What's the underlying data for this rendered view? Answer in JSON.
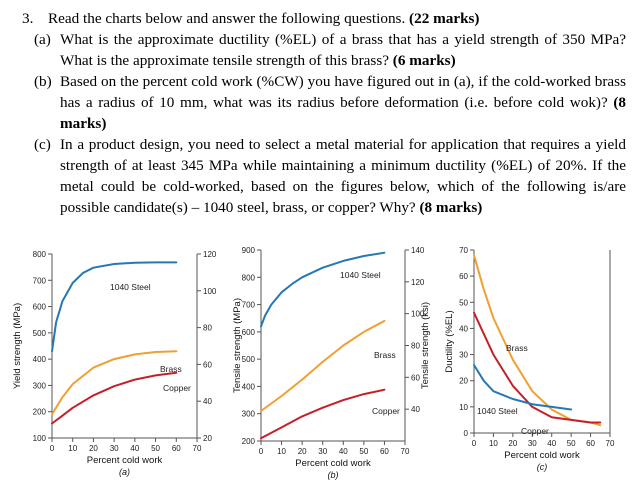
{
  "question": {
    "number": "3.",
    "intro": "Read the charts below and answer the following questions.",
    "intro_marks": "(22 marks)",
    "parts": [
      {
        "label": "(a)",
        "text": "What is the approximate ductility (%EL) of a brass that has a yield strength of 350 MPa? What is the approximate tensile strength of this brass?",
        "marks": "(6 marks)"
      },
      {
        "label": "(b)",
        "text": "Based on the percent cold work (%CW) you have figured out in (a), if the cold-worked brass has a radius of 10 mm, what was its radius before deformation (i.e. before cold wok)?",
        "marks": "(8 marks)"
      },
      {
        "label": "(c)",
        "text": "In a product design, you need to select a metal material for application that requires a yield strength of at least 345 MPa while maintaining a minimum ductility (%EL) of 20%. If the metal could be cold-worked, based on the figures below, which of the following is/are possible candidate(s) – 1040 steel, brass, or copper? Why?",
        "marks": "(8 marks)"
      }
    ]
  },
  "colors": {
    "steel": "#2678b4",
    "brass": "#f0a030",
    "copper": "#c42028"
  },
  "chart_data": [
    {
      "type": "line",
      "caption": "(a)",
      "xlabel": "Percent cold work",
      "ylabel": "Yield strength (MPa)",
      "ylabel_right": "",
      "xlim": [
        0,
        70
      ],
      "ylim": [
        100,
        800
      ],
      "yticks": [
        100,
        200,
        300,
        400,
        500,
        600,
        700,
        800
      ],
      "ylim_right": [
        20,
        120
      ],
      "yticks_right": [
        20,
        40,
        60,
        80,
        100,
        120
      ],
      "xticks": [
        0,
        10,
        20,
        30,
        40,
        50,
        60,
        70
      ],
      "series": [
        {
          "name": "1040 Steel",
          "key": "steel",
          "x": [
            0,
            2,
            5,
            10,
            15,
            20,
            30,
            40,
            50,
            60
          ],
          "y": [
            430,
            540,
            620,
            690,
            728,
            748,
            762,
            767,
            768,
            768
          ]
        },
        {
          "name": "Brass",
          "key": "brass",
          "x": [
            0,
            5,
            10,
            20,
            30,
            40,
            50,
            60
          ],
          "y": [
            190,
            255,
            305,
            368,
            400,
            418,
            427,
            430
          ]
        },
        {
          "name": "Copper",
          "key": "copper",
          "x": [
            0,
            5,
            10,
            20,
            30,
            40,
            50,
            60
          ],
          "y": [
            155,
            185,
            215,
            262,
            297,
            322,
            338,
            348
          ]
        }
      ]
    },
    {
      "type": "line",
      "caption": "(b)",
      "xlabel": "Percent cold work",
      "ylabel": "Tensile strength (MPa)",
      "ylabel_right": "Tensile strength (ksi)",
      "xlim": [
        0,
        70
      ],
      "ylim": [
        200,
        900
      ],
      "yticks": [
        200,
        300,
        400,
        500,
        600,
        700,
        800,
        900
      ],
      "ylim_right": [
        20,
        140
      ],
      "yticks_right": [
        40,
        60,
        80,
        100,
        120,
        140
      ],
      "xticks": [
        0,
        10,
        20,
        30,
        40,
        50,
        60,
        70
      ],
      "series": [
        {
          "name": "1040 Steel",
          "key": "steel",
          "x": [
            0,
            2,
            5,
            10,
            15,
            20,
            30,
            40,
            50,
            60
          ],
          "y": [
            620,
            660,
            700,
            745,
            775,
            800,
            835,
            860,
            878,
            890
          ]
        },
        {
          "name": "Brass",
          "key": "brass",
          "x": [
            0,
            10,
            20,
            30,
            40,
            50,
            60
          ],
          "y": [
            310,
            365,
            425,
            490,
            550,
            600,
            640
          ]
        },
        {
          "name": "Copper",
          "key": "copper",
          "x": [
            0,
            10,
            20,
            30,
            40,
            50,
            60
          ],
          "y": [
            210,
            250,
            290,
            322,
            350,
            372,
            388
          ]
        }
      ]
    },
    {
      "type": "line",
      "caption": "(c)",
      "xlabel": "Percent cold work",
      "ylabel": "Ductility (%EL)",
      "ylabel_right": "",
      "xlim": [
        0,
        70
      ],
      "ylim": [
        0,
        70
      ],
      "yticks": [
        0,
        10,
        20,
        30,
        40,
        50,
        60,
        70
      ],
      "xticks": [
        0,
        10,
        20,
        30,
        40,
        50,
        60,
        70
      ],
      "series": [
        {
          "name": "Brass",
          "key": "brass",
          "x": [
            0,
            5,
            10,
            20,
            30,
            40,
            50,
            60,
            65
          ],
          "y": [
            68,
            55,
            44,
            28,
            16,
            9,
            5,
            4,
            3
          ]
        },
        {
          "name": "Copper",
          "key": "copper",
          "x": [
            0,
            5,
            10,
            20,
            30,
            40,
            50,
            60,
            65
          ],
          "y": [
            46,
            38,
            30,
            18,
            10,
            6,
            5,
            4,
            4
          ]
        },
        {
          "name": "1040 Steel",
          "key": "steel",
          "x": [
            0,
            5,
            10,
            20,
            30,
            40,
            50
          ],
          "y": [
            26,
            20,
            16,
            13,
            11,
            10,
            9
          ]
        }
      ]
    }
  ]
}
